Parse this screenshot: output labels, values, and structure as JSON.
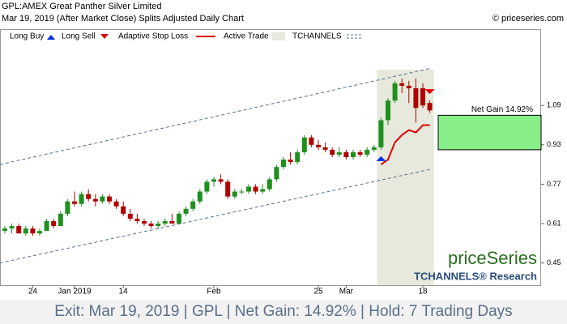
{
  "chart_data": {
    "type": "candlestick",
    "title": "GPL:AMEX Great Panther Silver Limited",
    "subtitle": "Mar 19, 2019 (After Market Close)  Splits Adjusted Daily Chart",
    "copyright": "© priceseries.com",
    "legend": [
      "Long Buy",
      "Long Sell",
      "Adaptive Stop Loss",
      "Active Trade",
      "TCHANNELS"
    ],
    "watermark": "priceSeries",
    "watermark_sub": "TCHANNELS® Research",
    "footer": "Exit: Mar 19, 2019 | GPL | Net Gain: 14.92% | Hold: 7 Trading Days",
    "net_gain_label": "Net Gain 14.92%",
    "net_gain_box": [
      0.91,
      1.05
    ],
    "up_color": "#1f8f1f",
    "down_color": "#b00000",
    "categories": [
      null,
      null,
      null,
      null,
      "24",
      null,
      null,
      null,
      null,
      null,
      "Jan 2019",
      null,
      null,
      null,
      null,
      null,
      null,
      "14",
      null,
      null,
      null,
      null,
      null,
      null,
      null,
      null,
      null,
      null,
      null,
      null,
      "Feb",
      null,
      null,
      null,
      null,
      null,
      null,
      null,
      null,
      null,
      null,
      null,
      null,
      null,
      null,
      "25",
      null,
      null,
      null,
      "Mar",
      null,
      null,
      null,
      null,
      null,
      null,
      null,
      null,
      null,
      null,
      "18",
      null
    ],
    "open": [
      0.58,
      0.59,
      0.6,
      0.57,
      0.59,
      0.57,
      0.58,
      0.62,
      0.6,
      0.65,
      0.7,
      0.69,
      0.73,
      0.71,
      0.7,
      0.72,
      0.7,
      0.68,
      0.65,
      0.63,
      0.62,
      0.61,
      0.6,
      0.61,
      0.62,
      0.61,
      0.65,
      0.67,
      0.7,
      0.74,
      0.78,
      0.79,
      0.78,
      0.72,
      0.74,
      0.74,
      0.76,
      0.74,
      0.75,
      0.79,
      0.84,
      0.87,
      0.86,
      0.9,
      0.96,
      0.93,
      0.92,
      0.91,
      0.89,
      0.9,
      0.88,
      0.9,
      0.89,
      0.91,
      0.92,
      1.03,
      1.11,
      1.18,
      1.17,
      1.16,
      1.16,
      1.1
    ],
    "high": [
      0.6,
      0.61,
      0.61,
      0.6,
      0.6,
      0.59,
      0.63,
      0.63,
      0.66,
      0.71,
      0.74,
      0.74,
      0.75,
      0.73,
      0.73,
      0.73,
      0.71,
      0.7,
      0.67,
      0.65,
      0.63,
      0.62,
      0.62,
      0.63,
      0.65,
      0.66,
      0.68,
      0.71,
      0.75,
      0.79,
      0.8,
      0.81,
      0.79,
      0.75,
      0.75,
      0.77,
      0.77,
      0.77,
      0.8,
      0.85,
      0.88,
      0.9,
      0.91,
      0.97,
      0.97,
      0.95,
      0.94,
      0.92,
      0.92,
      0.91,
      0.91,
      0.91,
      0.92,
      0.93,
      1.04,
      1.12,
      1.19,
      1.2,
      1.19,
      1.2,
      1.18,
      1.11
    ],
    "low": [
      0.57,
      0.57,
      0.57,
      0.56,
      0.56,
      0.56,
      0.58,
      0.59,
      0.6,
      0.64,
      0.68,
      0.68,
      0.7,
      0.68,
      0.69,
      0.69,
      0.67,
      0.64,
      0.62,
      0.61,
      0.6,
      0.59,
      0.59,
      0.6,
      0.61,
      0.61,
      0.64,
      0.66,
      0.69,
      0.73,
      0.76,
      0.77,
      0.71,
      0.71,
      0.73,
      0.73,
      0.73,
      0.73,
      0.74,
      0.78,
      0.83,
      0.85,
      0.85,
      0.89,
      0.92,
      0.91,
      0.9,
      0.88,
      0.88,
      0.87,
      0.87,
      0.88,
      0.88,
      0.9,
      0.91,
      1.01,
      1.1,
      1.14,
      1.1,
      1.02,
      1.08,
      1.06
    ],
    "close": [
      0.59,
      0.6,
      0.57,
      0.59,
      0.57,
      0.58,
      0.62,
      0.6,
      0.65,
      0.7,
      0.69,
      0.73,
      0.71,
      0.7,
      0.72,
      0.7,
      0.68,
      0.65,
      0.63,
      0.62,
      0.61,
      0.6,
      0.61,
      0.62,
      0.61,
      0.65,
      0.67,
      0.7,
      0.74,
      0.78,
      0.79,
      0.78,
      0.72,
      0.74,
      0.74,
      0.76,
      0.74,
      0.75,
      0.79,
      0.84,
      0.87,
      0.86,
      0.9,
      0.96,
      0.93,
      0.92,
      0.91,
      0.89,
      0.9,
      0.88,
      0.9,
      0.89,
      0.91,
      0.92,
      1.03,
      1.11,
      1.18,
      1.17,
      1.16,
      1.08,
      1.09,
      1.07
    ],
    "stop_loss": {
      "color": "#e00000",
      "values": [
        null,
        null,
        null,
        null,
        null,
        null,
        null,
        null,
        null,
        null,
        null,
        null,
        null,
        null,
        null,
        null,
        null,
        null,
        null,
        null,
        null,
        null,
        null,
        null,
        null,
        null,
        null,
        null,
        null,
        null,
        null,
        null,
        null,
        null,
        null,
        null,
        null,
        null,
        null,
        null,
        null,
        null,
        null,
        null,
        null,
        null,
        null,
        null,
        null,
        null,
        null,
        null,
        null,
        null,
        0.85,
        0.87,
        0.94,
        0.97,
        0.99,
        0.98,
        1.01,
        1.01
      ]
    },
    "tchannel_upper": [
      0.85,
      1.24
    ],
    "tchannel_lower": [
      0.45,
      0.83
    ],
    "ylim": [
      0.36,
      1.4
    ],
    "yticks": [
      1.09,
      0.93,
      0.77,
      0.61,
      0.45
    ]
  }
}
